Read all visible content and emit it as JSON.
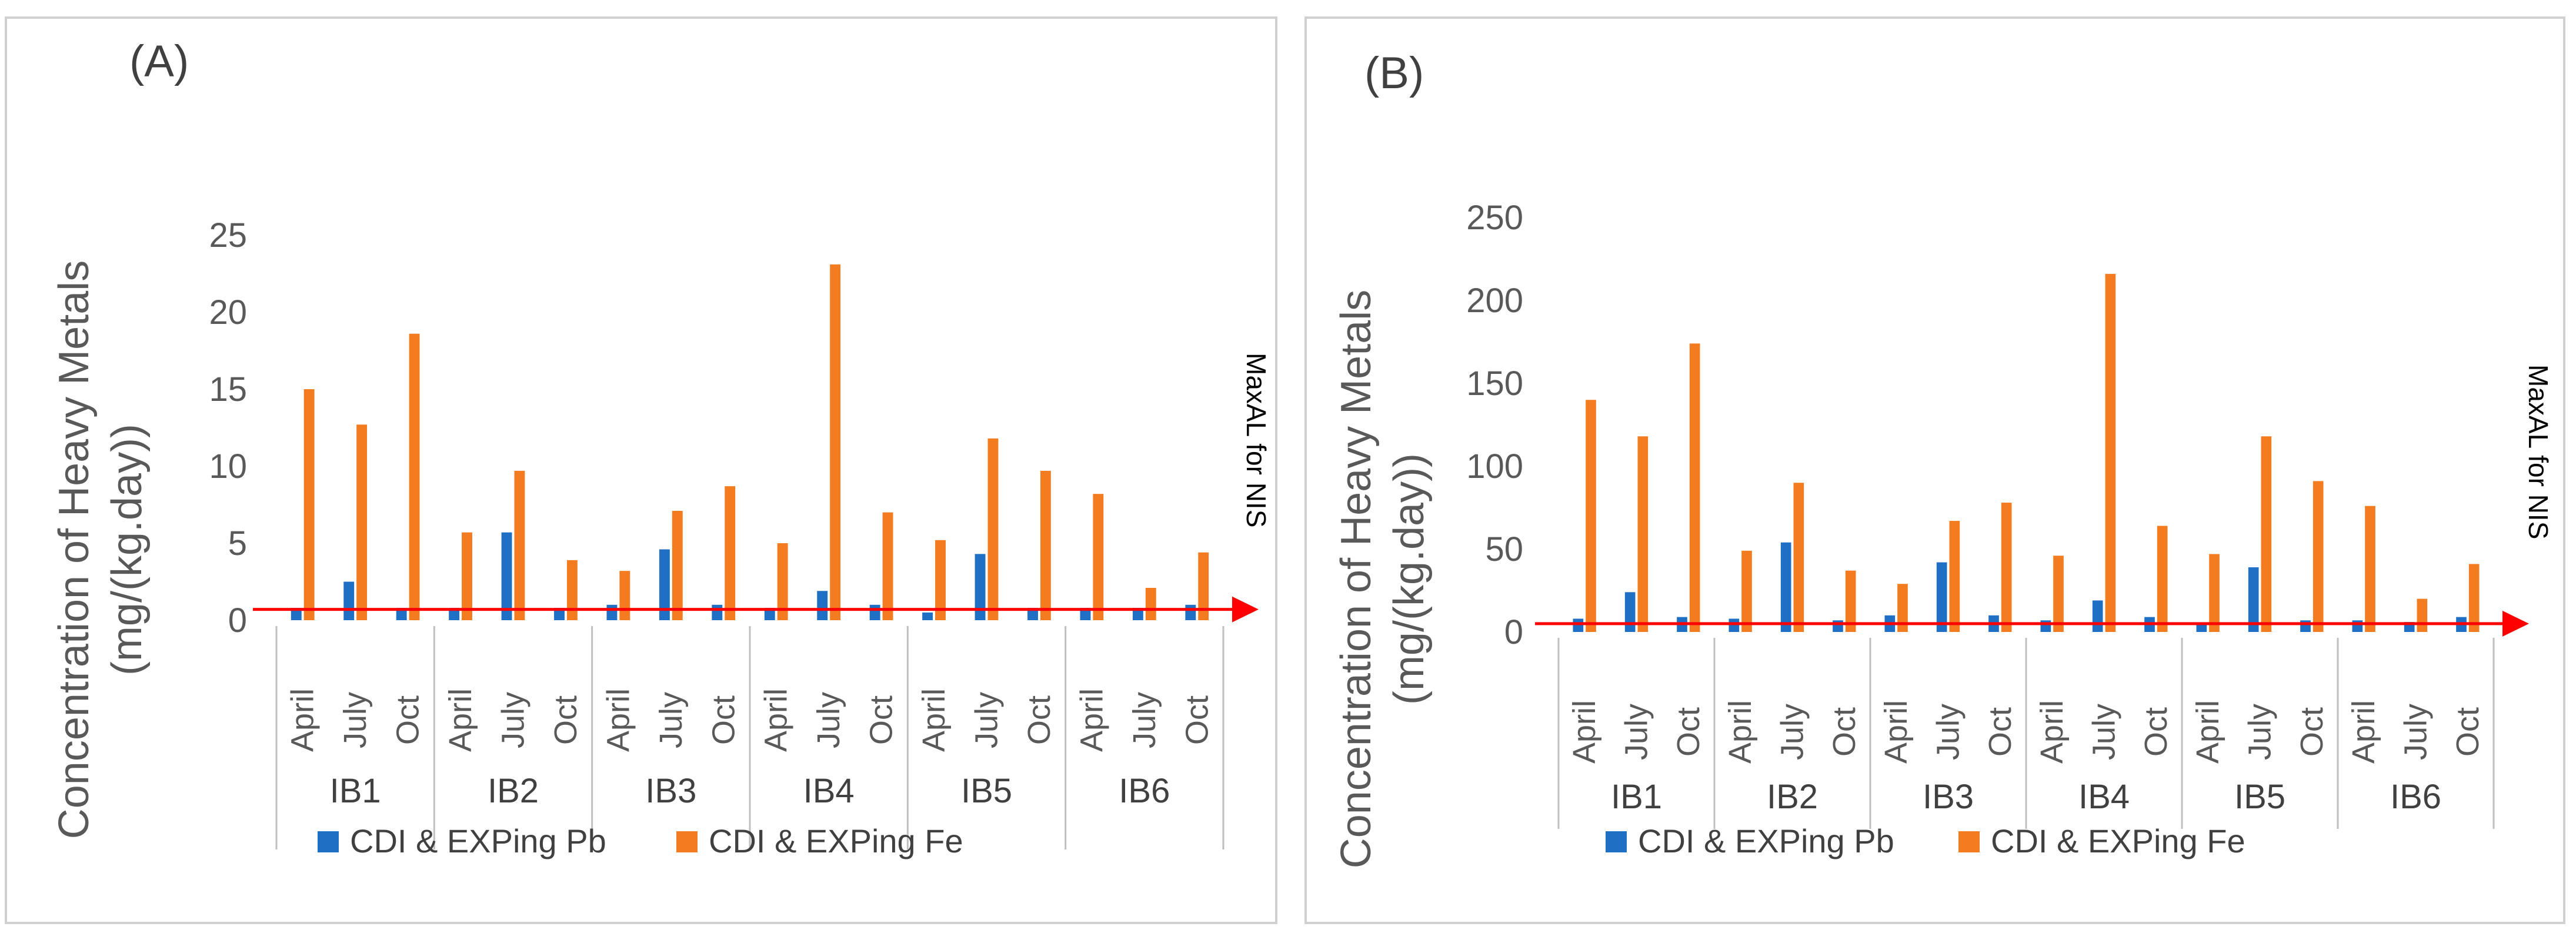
{
  "colors": {
    "pb": "#1f6fc4",
    "fe": "#f47c20",
    "ref_line": "#ff0000"
  },
  "chart_data": [
    {
      "type": "bar",
      "panel_label": "(A)",
      "ylabel_line1": "Concentration of Heavy Metals",
      "ylabel_line2": "(mg/(kg.day))",
      "ylim": [
        0,
        25
      ],
      "yticks": [
        0,
        5,
        10,
        15,
        20,
        25
      ],
      "groups": [
        "IB1",
        "IB2",
        "IB3",
        "IB4",
        "IB5",
        "IB6"
      ],
      "months": [
        "April",
        "July",
        "Oct"
      ],
      "series": [
        {
          "name": "CDI & EXPing Pb",
          "values": [
            0.8,
            2.5,
            0.8,
            0.8,
            5.7,
            0.8,
            1.0,
            4.6,
            1.0,
            0.8,
            1.9,
            1.0,
            0.5,
            4.3,
            0.8,
            0.8,
            0.8,
            1.0
          ]
        },
        {
          "name": "CDI & EXPing Fe",
          "values": [
            15.0,
            12.7,
            18.6,
            5.7,
            9.7,
            3.9,
            3.2,
            7.1,
            8.7,
            5.0,
            23.1,
            7.0,
            5.2,
            11.8,
            9.7,
            8.2,
            2.1,
            4.4
          ]
        }
      ],
      "reference_line": {
        "value": 0.7,
        "label": "MaxAL for NIS"
      },
      "legend": "bottom"
    },
    {
      "type": "bar",
      "panel_label": "(B)",
      "ylabel_line1": "Concentration of Heavy Metals",
      "ylabel_line2": "(mg/(kg.day))",
      "ylim": [
        0,
        250
      ],
      "yticks": [
        0,
        50,
        100,
        150,
        200,
        250
      ],
      "groups": [
        "IB1",
        "IB2",
        "IB3",
        "IB4",
        "IB5",
        "IB6"
      ],
      "months": [
        "April",
        "July",
        "Oct"
      ],
      "series": [
        {
          "name": "CDI & EXPing Pb",
          "values": [
            8,
            24,
            9,
            8,
            54,
            7,
            10,
            42,
            10,
            7,
            19,
            9,
            5,
            39,
            7,
            7,
            6,
            9
          ]
        },
        {
          "name": "CDI & EXPing Fe",
          "values": [
            140,
            118,
            174,
            49,
            90,
            37,
            29,
            67,
            78,
            46,
            216,
            64,
            47,
            118,
            91,
            76,
            20,
            41
          ]
        }
      ],
      "reference_line": {
        "value": 5,
        "label": "MaxAL for NIS"
      },
      "legend": "bottom"
    }
  ]
}
